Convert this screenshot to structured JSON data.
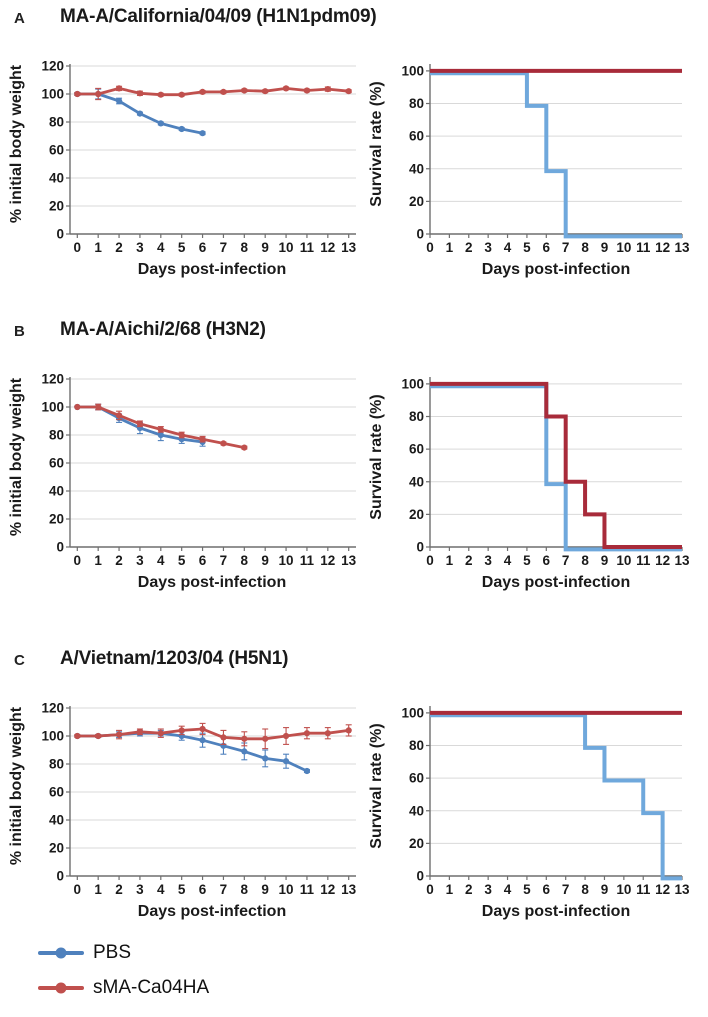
{
  "panels": [
    {
      "label": "A",
      "title": "MA-A/California/04/09 (H1N1pdm09)"
    },
    {
      "label": "B",
      "title": "MA-A/Aichi/2/68 (H3N2)"
    },
    {
      "label": "C",
      "title": "A/Vietnam/1203/04 (H5N1)"
    }
  ],
  "labels": {
    "weight_ylabel": "% initial body weight",
    "survival_ylabel": "Survival rate (%)",
    "xlabel": "Days post-infection"
  },
  "legend": {
    "items": [
      {
        "name": "PBS",
        "color": "#4f81bd"
      },
      {
        "name": "sMA-Ca04HA",
        "color": "#c0504d"
      }
    ]
  },
  "chart_data": [
    {
      "panel": "A",
      "type": "line",
      "title": "MA-A/California/04/09 (H1N1pdm09) body weight",
      "xlabel": "Days post-infection",
      "ylabel": "% initial body weight",
      "xlim": [
        0,
        13
      ],
      "ylim": [
        0,
        120
      ],
      "yticks": [
        0,
        20,
        40,
        60,
        80,
        100,
        120
      ],
      "xticks": [
        0,
        1,
        2,
        3,
        4,
        5,
        6,
        7,
        8,
        9,
        10,
        11,
        12,
        13
      ],
      "grid": true,
      "legend_position": "none",
      "series": [
        {
          "name": "PBS",
          "color": "#4f81bd",
          "x": [
            0,
            1,
            2,
            3,
            4,
            5,
            6
          ],
          "values": [
            100,
            100,
            95,
            86,
            79,
            75,
            72
          ],
          "errors": [
            1,
            3.5,
            2,
            1,
            1,
            1,
            1
          ]
        },
        {
          "name": "sMA-Ca04HA",
          "color": "#c0504d",
          "x": [
            0,
            1,
            2,
            3,
            4,
            5,
            6,
            7,
            8,
            9,
            10,
            11,
            12,
            13
          ],
          "values": [
            100,
            100,
            104,
            100.5,
            99.5,
            99.5,
            101.5,
            101.5,
            102.5,
            102,
            104,
            102.5,
            103.5,
            102
          ],
          "errors": [
            1,
            4,
            1.5,
            1.5,
            1,
            1,
            1,
            1,
            1,
            1,
            1,
            1,
            1.5,
            1
          ]
        }
      ]
    },
    {
      "panel": "A",
      "type": "step",
      "title": "MA-A/California/04/09 (H1N1pdm09) survival",
      "xlabel": "Days post-infection",
      "ylabel": "Survival rate (%)",
      "xlim": [
        0,
        13
      ],
      "ylim": [
        0,
        103
      ],
      "yticks": [
        0,
        20,
        40,
        60,
        80,
        100
      ],
      "xticks": [
        0,
        1,
        2,
        3,
        4,
        5,
        6,
        7,
        8,
        9,
        10,
        11,
        12,
        13
      ],
      "grid": true,
      "legend_position": "none",
      "series": [
        {
          "name": "PBS",
          "color": "#6fa8dc",
          "values": [
            100,
            100,
            100,
            100,
            100,
            80,
            40,
            0,
            0,
            0,
            0,
            0,
            0,
            0
          ]
        },
        {
          "name": "sMA-Ca04HA",
          "color": "#a82b3a",
          "values": [
            100,
            100,
            100,
            100,
            100,
            100,
            100,
            100,
            100,
            100,
            100,
            100,
            100,
            100
          ]
        }
      ]
    },
    {
      "panel": "B",
      "type": "line",
      "title": "MA-A/Aichi/2/68 (H3N2) body weight",
      "xlabel": "Days post-infection",
      "ylabel": "% initial body weight",
      "xlim": [
        0,
        13
      ],
      "ylim": [
        0,
        120
      ],
      "yticks": [
        0,
        20,
        40,
        60,
        80,
        100,
        120
      ],
      "xticks": [
        0,
        1,
        2,
        3,
        4,
        5,
        6,
        7,
        8,
        9,
        10,
        11,
        12,
        13
      ],
      "grid": true,
      "legend_position": "none",
      "series": [
        {
          "name": "PBS",
          "color": "#4f81bd",
          "x": [
            0,
            1,
            2,
            3,
            4,
            5,
            6
          ],
          "values": [
            100,
            100,
            92,
            85,
            80,
            77,
            75
          ],
          "errors": [
            0,
            2,
            3,
            4,
            4,
            3,
            3
          ]
        },
        {
          "name": "sMA-Ca04HA",
          "color": "#c0504d",
          "x": [
            0,
            1,
            2,
            3,
            4,
            5,
            6,
            7,
            8
          ],
          "values": [
            100,
            100,
            94,
            88,
            84,
            80,
            77,
            74,
            71
          ],
          "errors": [
            0,
            2,
            3,
            2,
            2,
            2,
            2,
            1,
            1
          ]
        }
      ]
    },
    {
      "panel": "B",
      "type": "step",
      "title": "MA-A/Aichi/2/68 (H3N2) survival",
      "xlabel": "Days post-infection",
      "ylabel": "Survival rate (%)",
      "xlim": [
        0,
        13
      ],
      "ylim": [
        0,
        103
      ],
      "yticks": [
        0,
        20,
        40,
        60,
        80,
        100
      ],
      "xticks": [
        0,
        1,
        2,
        3,
        4,
        5,
        6,
        7,
        8,
        9,
        10,
        11,
        12,
        13
      ],
      "grid": true,
      "legend_position": "none",
      "series": [
        {
          "name": "PBS",
          "color": "#6fa8dc",
          "values": [
            100,
            100,
            100,
            100,
            100,
            100,
            40,
            0,
            0,
            0,
            0,
            0,
            0,
            0
          ]
        },
        {
          "name": "sMA-Ca04HA",
          "color": "#a82b3a",
          "values": [
            100,
            100,
            100,
            100,
            100,
            100,
            80,
            40,
            20,
            0,
            0,
            0,
            0,
            0
          ]
        }
      ]
    },
    {
      "panel": "C",
      "type": "line",
      "title": "A/Vietnam/1203/04 (H5N1) body weight",
      "xlabel": "Days post-infection",
      "ylabel": "% initial body weight",
      "xlim": [
        0,
        13
      ],
      "ylim": [
        0,
        120
      ],
      "yticks": [
        0,
        20,
        40,
        60,
        80,
        100,
        120
      ],
      "xticks": [
        0,
        1,
        2,
        3,
        4,
        5,
        6,
        7,
        8,
        9,
        10,
        11,
        12,
        13
      ],
      "grid": true,
      "legend_position": "none",
      "series": [
        {
          "name": "PBS",
          "color": "#4f81bd",
          "x": [
            0,
            1,
            2,
            3,
            4,
            5,
            6,
            7,
            8,
            9,
            10,
            11
          ],
          "values": [
            100,
            100,
            101,
            102,
            102,
            100,
            97,
            93,
            89,
            84,
            82,
            75
          ],
          "errors": [
            0,
            1,
            2,
            2,
            2,
            3,
            5,
            6,
            6,
            6,
            5,
            1
          ]
        },
        {
          "name": "sMA-Ca04HA",
          "color": "#c0504d",
          "x": [
            0,
            1,
            2,
            3,
            4,
            5,
            6,
            7,
            8,
            9,
            10,
            11,
            12,
            13
          ],
          "values": [
            100,
            100,
            101,
            103,
            102,
            104,
            105,
            99,
            98,
            98,
            100,
            102,
            102,
            104
          ],
          "errors": [
            1,
            1,
            3,
            2,
            3,
            3,
            4,
            5,
            5,
            7,
            6,
            4,
            4,
            4
          ]
        }
      ]
    },
    {
      "panel": "C",
      "type": "step",
      "title": "A/Vietnam/1203/04 (H5N1) survival",
      "xlabel": "Days post-infection",
      "ylabel": "Survival rate (%)",
      "xlim": [
        0,
        13
      ],
      "ylim": [
        0,
        103
      ],
      "yticks": [
        0,
        20,
        40,
        60,
        80,
        100
      ],
      "xticks": [
        0,
        1,
        2,
        3,
        4,
        5,
        6,
        7,
        8,
        9,
        10,
        11,
        12,
        13
      ],
      "grid": true,
      "legend_position": "none",
      "series": [
        {
          "name": "PBS",
          "color": "#6fa8dc",
          "values": [
            100,
            100,
            100,
            100,
            100,
            100,
            100,
            100,
            80,
            60,
            60,
            40,
            0,
            0
          ]
        },
        {
          "name": "sMA-Ca04HA",
          "color": "#a82b3a",
          "values": [
            100,
            100,
            100,
            100,
            100,
            100,
            100,
            100,
            100,
            100,
            100,
            100,
            100,
            100
          ]
        }
      ]
    }
  ]
}
